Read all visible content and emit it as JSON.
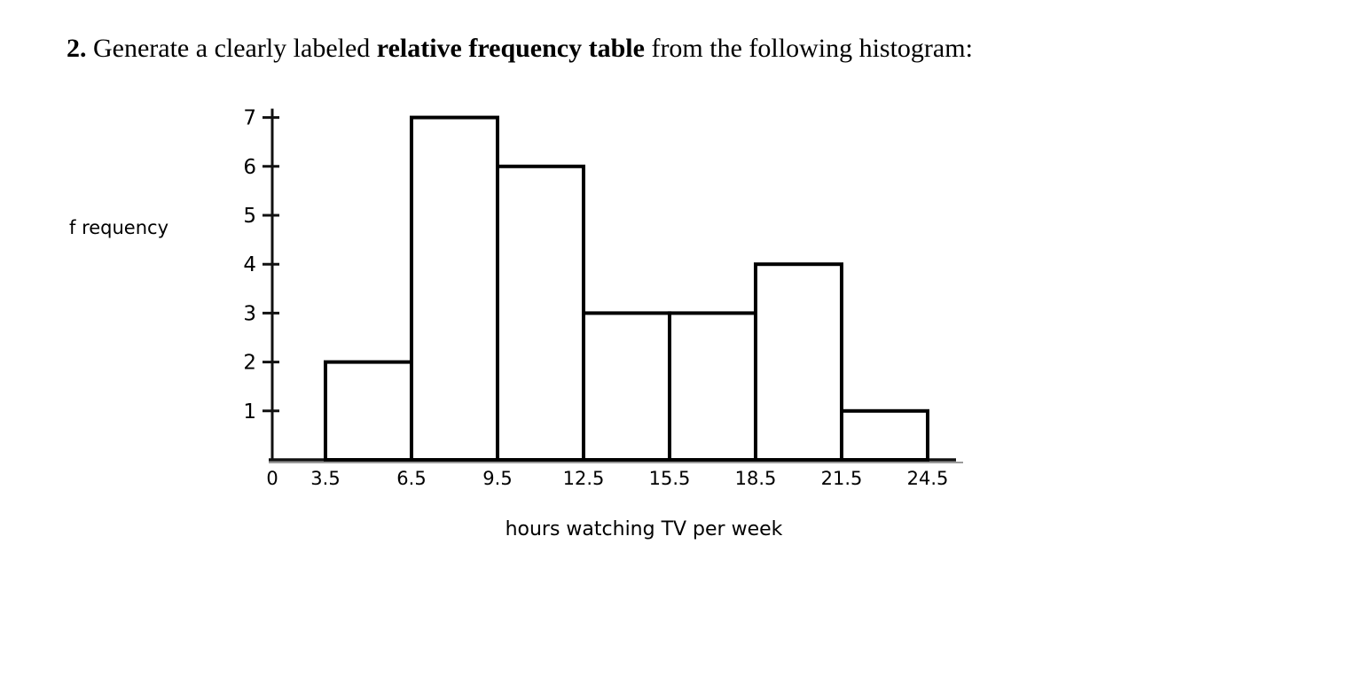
{
  "question": {
    "number": "2.",
    "text_before_bold": "Generate a clearly labeled",
    "bold_phrase": "relative frequency table",
    "text_after_bold": "from the following histogram:"
  },
  "chart_data": {
    "type": "bar",
    "subtype": "histogram",
    "title": "",
    "xlabel": "hours watching TV per week",
    "ylabel": "f requency",
    "bin_edges": [
      3.5,
      6.5,
      9.5,
      12.5,
      15.5,
      18.5,
      21.5,
      24.5
    ],
    "frequencies": [
      2,
      7,
      6,
      3,
      3,
      4,
      1
    ],
    "x_tick_labels": [
      "0",
      "3.5",
      "6.5",
      "9.5",
      "12.5",
      "15.5",
      "18.5",
      "21.5",
      "24.5"
    ],
    "y_tick_labels": [
      "1",
      "2",
      "3",
      "4",
      "5",
      "6",
      "7"
    ],
    "ylim": [
      0,
      7
    ],
    "grid": false,
    "legend": false,
    "bar_fill": "#ffffff",
    "stroke_color": "#000000",
    "background_color": "#ffffff",
    "text_color": "#000000"
  }
}
